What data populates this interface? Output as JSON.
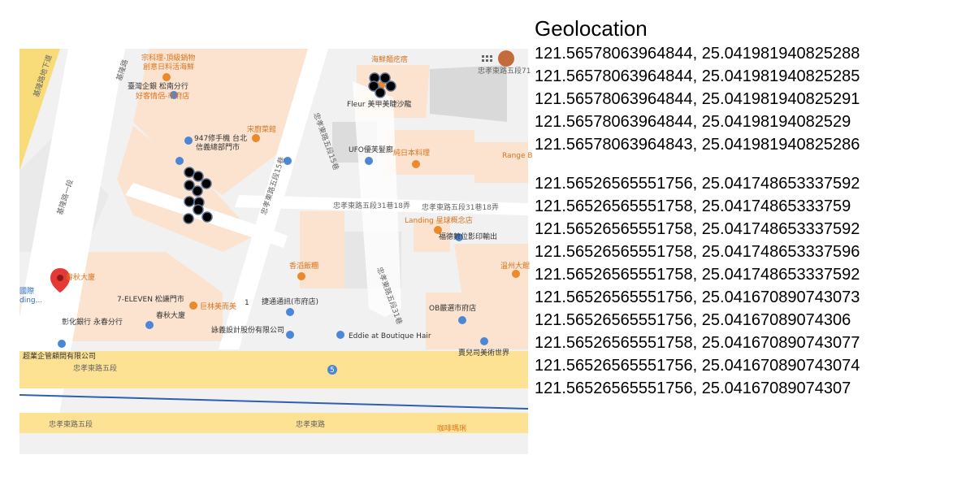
{
  "panel": {
    "title": "Geolocation",
    "group1": [
      "121.56578063964844, 25.041981940825288",
      "121.56578063964844, 25.041981940825285",
      "121.56578063964844, 25.041981940825291",
      "121.56578063964844, 25.04198194082529",
      "121.56578063964843, 25.041981940825286"
    ],
    "group2": [
      "121.56526565551756, 25.041748653337592",
      "121.56526565551758, 25.04174865333759",
      "121.56526565551758, 25.041748653337592",
      "121.56526565551758, 25.041748653337596",
      "121.56526565551758, 25.041748653337592",
      "121.56526565551756, 25.041670890743073",
      "121.56526565551756, 25.04167089074306",
      "121.56526565551758, 25.041670890743077",
      "121.56526565551756, 25.041670890743074",
      "121.56526565551756, 25.04167089074307"
    ]
  },
  "map": {
    "labels": {
      "seafood": "宗科理-頂級鍋物",
      "seafood2": "創意日料活海鮮",
      "haixian": "海鮮麵疙瘩",
      "taiwan_bank": "臺灣企銀 松南分行",
      "goodfood": "好客情侶-市府店",
      "mobile": "947修手機 台北",
      "mobile2": "信義總部門市",
      "songchuan": "宋廚菜館",
      "fleur": "Fleur 美甲美睫沙龍",
      "ufo": "UFO優芙髮廊",
      "jun": "純日本料理",
      "range": "Range B",
      "road_vertical_left": "基隆路一段",
      "road_vertical_top": "基隆路",
      "tunnel": "基隆路地下道",
      "lane15": "忠孝東路五段15巷",
      "lane31": "忠孝東路五段31巷18弄",
      "lane31b": "忠孝東路五段31巷18弄",
      "landing": "Landing 星球概念店",
      "fudeng": "福德數位影印輸出",
      "lane15b": "忠孝東路五段15巷",
      "lane31c": "忠孝東路五段31巷",
      "chunqiu": "春秋大廈",
      "chunqiu_small": "春秋大廈",
      "seven": "7-ELEVEN 松謙門市",
      "mlin": "巨林美而美",
      "changhua": "彰化銀行 永春分行",
      "jietong": "捷通通訊(市府店)",
      "yongyi": "詠義設計股份有限公司",
      "eddie": "Eddie at Boutique Hair",
      "obli": "OB嚴選市府店",
      "xiang": "香滔飯糰",
      "wenzhou": "溫州大餛",
      "chaoye": "超業企管顧問有限公司",
      "guoguo": "賣兒司美術世界",
      "zhongxiao5": "忠孝東路五段",
      "zhongxiao5b": "忠孝東路五段",
      "zhongxiao": "忠孝東路",
      "coffee": "咖啡瑪琍",
      "lane71": "忠孝東路五段71",
      "intl": "國際",
      "building": "ding...",
      "shield": "5",
      "one": "1"
    }
  }
}
